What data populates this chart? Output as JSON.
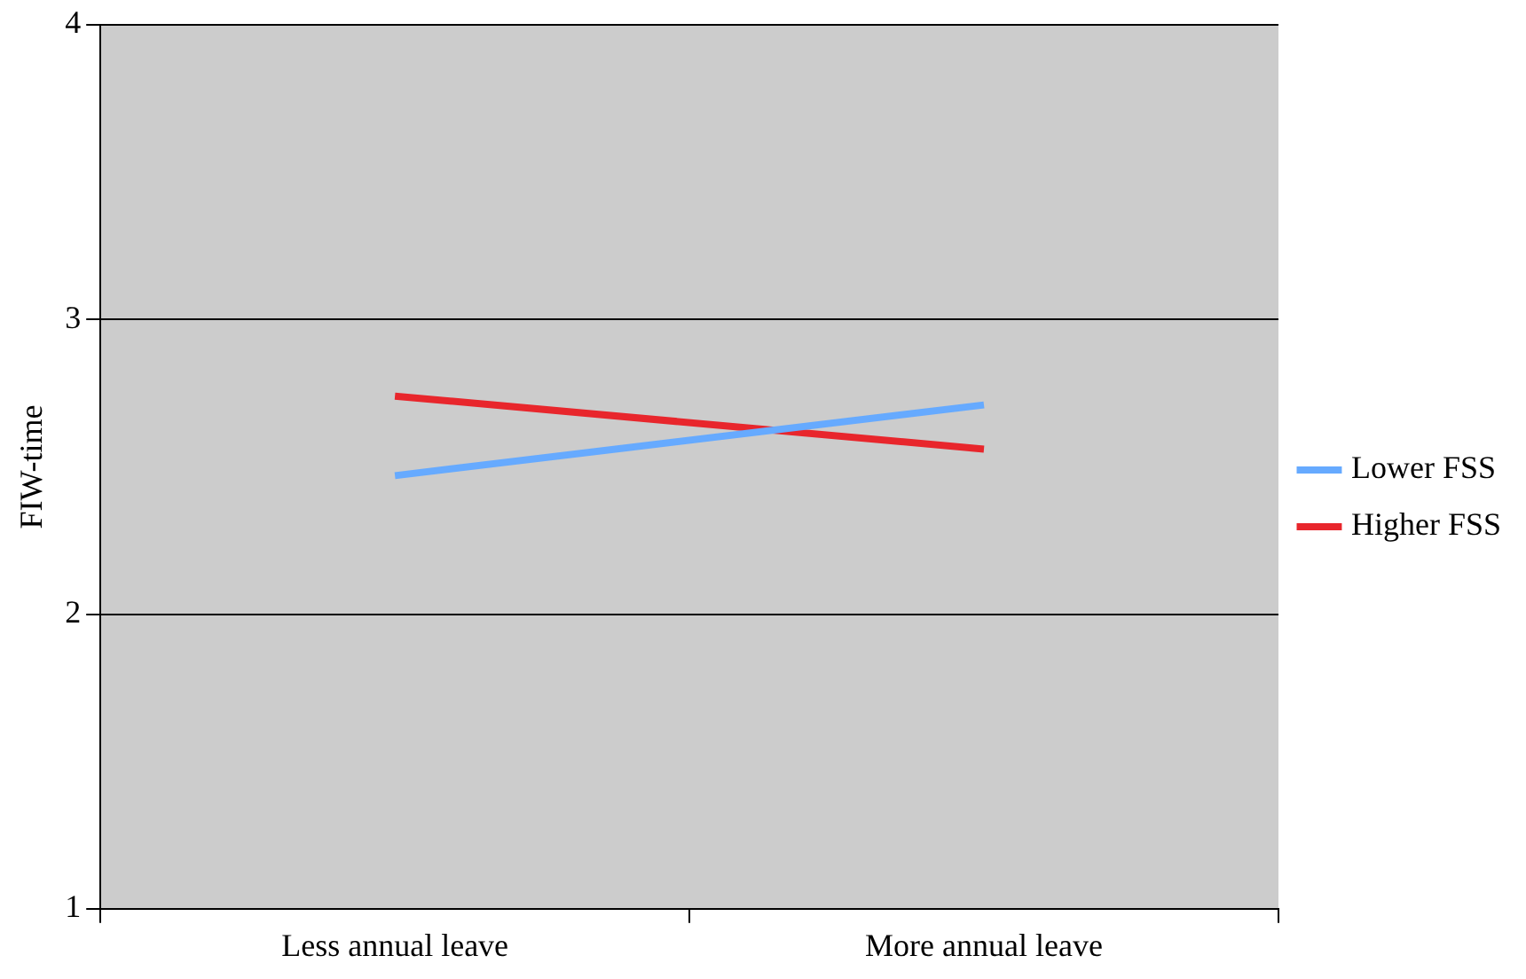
{
  "chart_data": {
    "type": "line",
    "ylabel": "FIW-time",
    "categories": [
      "Less annual leave",
      "More annual leave"
    ],
    "series": [
      {
        "name": "Lower FSS",
        "color": "#66aaff",
        "values": [
          2.47,
          2.71
        ]
      },
      {
        "name": "Higher FSS",
        "color": "#e8262c",
        "values": [
          2.74,
          2.56
        ]
      }
    ],
    "ylim": [
      1,
      4
    ],
    "yticks": [
      1,
      2,
      3,
      4
    ],
    "grid": "y",
    "legend": "right",
    "marker": "none"
  }
}
